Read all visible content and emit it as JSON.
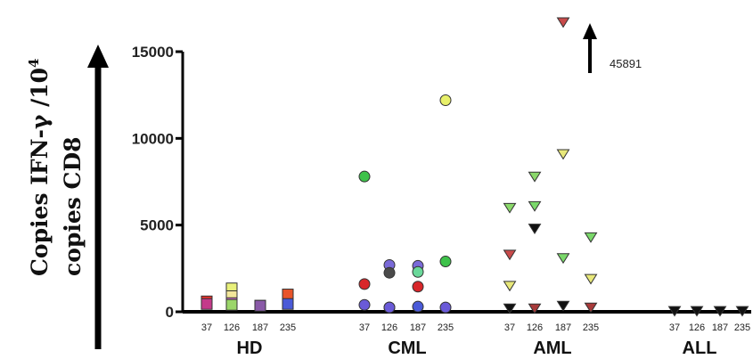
{
  "chart_data": {
    "type": "scatter",
    "ylabel_line1": "Copies IFN-γ /10",
    "ylabel_sup": "4",
    "ylabel_line2": "copies CD8",
    "ylim": [
      0,
      15000
    ],
    "yticks": [
      "0",
      "5000",
      "10000",
      "15000"
    ],
    "ytick_values": [
      0,
      5000,
      10000,
      15000
    ],
    "groups": [
      "HD",
      "CML",
      "AML",
      "ALL"
    ],
    "categories": [
      "37",
      "126",
      "187",
      "235"
    ],
    "annotation": "45891",
    "series": [
      {
        "group": "HD",
        "marker": "square",
        "points": [
          {
            "x": "37",
            "y": 600,
            "color": "#e8322a"
          },
          {
            "x": "37",
            "y": 450,
            "color": "#c43a8a"
          },
          {
            "x": "126",
            "y": 1350,
            "color": "#e8f07a"
          },
          {
            "x": "126",
            "y": 900,
            "color": "#f3e79a"
          },
          {
            "x": "126",
            "y": 500,
            "color": "#e07ad8"
          },
          {
            "x": "126",
            "y": 400,
            "color": "#9bd66a"
          },
          {
            "x": "187",
            "y": 350,
            "color": "#7ab86a"
          },
          {
            "x": "187",
            "y": 350,
            "color": "#8a5aa8"
          },
          {
            "x": "235",
            "y": 1000,
            "color": "#e8542a"
          },
          {
            "x": "235",
            "y": 450,
            "color": "#4a5ad8"
          }
        ]
      },
      {
        "group": "CML",
        "marker": "circle",
        "points": [
          {
            "x": "37",
            "y": 7800,
            "color": "#3ec24a"
          },
          {
            "x": "37",
            "y": 1600,
            "color": "#d8262a"
          },
          {
            "x": "37",
            "y": 400,
            "color": "#6a5ad8"
          },
          {
            "x": "126",
            "y": 2700,
            "color": "#7a6ad8"
          },
          {
            "x": "126",
            "y": 2250,
            "color": "#4a4a4a"
          },
          {
            "x": "126",
            "y": 250,
            "color": "#d87ad8"
          },
          {
            "x": "126",
            "y": 250,
            "color": "#6a5ad8"
          },
          {
            "x": "187",
            "y": 2650,
            "color": "#7a6ad8"
          },
          {
            "x": "187",
            "y": 2300,
            "color": "#6ad89a"
          },
          {
            "x": "187",
            "y": 1450,
            "color": "#d8262a"
          },
          {
            "x": "187",
            "y": 300,
            "color": "#4a5ad8"
          },
          {
            "x": "235",
            "y": 12200,
            "color": "#e8f06a"
          },
          {
            "x": "235",
            "y": 2900,
            "color": "#3ec24a"
          },
          {
            "x": "235",
            "y": 250,
            "color": "#6a5ad8"
          }
        ]
      },
      {
        "group": "AML",
        "marker": "triangle-down",
        "points": [
          {
            "x": "37",
            "y": 6000,
            "color": "#8ad86a"
          },
          {
            "x": "37",
            "y": 3300,
            "color": "#c84a4a"
          },
          {
            "x": "37",
            "y": 1500,
            "color": "#e8e87a"
          },
          {
            "x": "37",
            "y": 200,
            "color": "#111111"
          },
          {
            "x": "126",
            "y": 7800,
            "color": "#8ad86a"
          },
          {
            "x": "126",
            "y": 6100,
            "color": "#7ad86a"
          },
          {
            "x": "126",
            "y": 4800,
            "color": "#111111"
          },
          {
            "x": "126",
            "y": 200,
            "color": "#a83a3a"
          },
          {
            "x": "187",
            "y": 16700,
            "color": "#c84a4a"
          },
          {
            "x": "187",
            "y": 9100,
            "color": "#e8e87a"
          },
          {
            "x": "187",
            "y": 3100,
            "color": "#7ad86a"
          },
          {
            "x": "187",
            "y": 350,
            "color": "#111111"
          },
          {
            "x": "235",
            "y": 4300,
            "color": "#7ad86a"
          },
          {
            "x": "235",
            "y": 1900,
            "color": "#e8e87a"
          },
          {
            "x": "235",
            "y": 250,
            "color": "#a83a3a"
          }
        ]
      },
      {
        "group": "ALL",
        "marker": "triangle-down",
        "points": [
          {
            "x": "37",
            "y": 50,
            "color": "#111111"
          },
          {
            "x": "126",
            "y": 50,
            "color": "#111111"
          },
          {
            "x": "187",
            "y": 50,
            "color": "#111111"
          },
          {
            "x": "235",
            "y": 50,
            "color": "#111111"
          }
        ]
      }
    ]
  }
}
